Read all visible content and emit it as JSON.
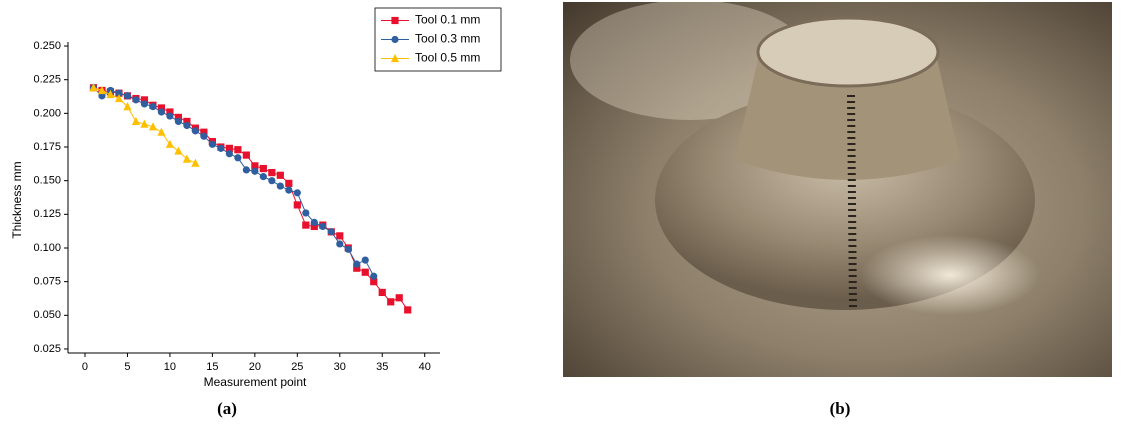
{
  "chart_data": {
    "type": "line",
    "xlabel": "Measurement point",
    "ylabel": "Thickness mm",
    "xlim": [
      -2,
      41.8
    ],
    "ylim": [
      0.022,
      0.253
    ],
    "xticks": [
      0,
      5,
      10,
      15,
      20,
      25,
      30,
      35,
      40
    ],
    "yticks": [
      {
        "value": 0.025,
        "label": "0.025"
      },
      {
        "value": 0.05,
        "label": "0.050"
      },
      {
        "value": 0.075,
        "label": "0.075"
      },
      {
        "value": 0.1,
        "label": "0.100"
      },
      {
        "value": 0.125,
        "label": "0.125"
      },
      {
        "value": 0.15,
        "label": "0.150"
      },
      {
        "value": 0.175,
        "label": "0.175"
      },
      {
        "value": 0.2,
        "label": "0.200"
      },
      {
        "value": 0.225,
        "label": "0.225"
      },
      {
        "value": 0.25,
        "label": "0.250"
      }
    ],
    "legend": "upper right",
    "grid": false,
    "series": [
      {
        "name": "Tool 0.1 mm",
        "color": "#e8112d",
        "marker": "square",
        "x": [
          1,
          2,
          3,
          4,
          5,
          6,
          7,
          8,
          9,
          10,
          11,
          12,
          13,
          14,
          15,
          16,
          17,
          18,
          19,
          20,
          21,
          22,
          23,
          24,
          25,
          26,
          27,
          28,
          29,
          30,
          31,
          32,
          33,
          34,
          35,
          36,
          37,
          38
        ],
        "values": [
          0.219,
          0.217,
          0.216,
          0.215,
          0.213,
          0.211,
          0.21,
          0.206,
          0.204,
          0.201,
          0.197,
          0.194,
          0.189,
          0.186,
          0.179,
          0.175,
          0.174,
          0.173,
          0.169,
          0.161,
          0.159,
          0.156,
          0.154,
          0.148,
          0.132,
          0.117,
          0.116,
          0.117,
          0.112,
          0.109,
          0.1,
          0.085,
          0.082,
          0.075,
          0.067,
          0.06,
          0.063,
          0.054
        ]
      },
      {
        "name": "Tool 0.3 mm",
        "color": "#2f5f9f",
        "marker": "circle",
        "x": [
          1,
          2,
          3,
          4,
          5,
          6,
          7,
          8,
          9,
          10,
          11,
          12,
          13,
          14,
          15,
          16,
          17,
          18,
          19,
          20,
          21,
          22,
          23,
          24,
          25,
          26,
          27,
          28,
          29,
          30,
          31,
          32,
          33,
          34
        ],
        "values": [
          0.219,
          0.213,
          0.217,
          0.215,
          0.213,
          0.21,
          0.207,
          0.205,
          0.201,
          0.198,
          0.194,
          0.191,
          0.187,
          0.183,
          0.177,
          0.174,
          0.17,
          0.167,
          0.158,
          0.157,
          0.153,
          0.15,
          0.146,
          0.143,
          0.141,
          0.126,
          0.119,
          0.116,
          0.112,
          0.103,
          0.099,
          0.088,
          0.091,
          0.079
        ]
      },
      {
        "name": "Tool 0.5 mm",
        "color": "#ffc000",
        "marker": "triangle",
        "x": [
          1,
          2,
          3,
          4,
          5,
          6,
          7,
          8,
          9,
          10,
          11,
          12,
          13
        ],
        "values": [
          0.219,
          0.217,
          0.214,
          0.211,
          0.205,
          0.194,
          0.192,
          0.19,
          0.186,
          0.177,
          0.172,
          0.166,
          0.163
        ]
      }
    ]
  },
  "captions": [
    "(a)",
    "(b)"
  ]
}
